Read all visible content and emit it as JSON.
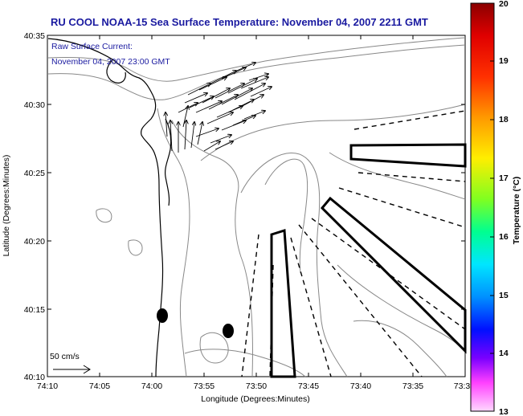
{
  "title": "RU COOL  NOAA-15  Sea Surface Temperature:  November 04, 2007 2211 GMT",
  "current_label_line1": "Raw Surface Current:",
  "current_label_line2": "November 04, 2007 23:00 GMT",
  "scale_label": "50 cm/s",
  "x_axis_label": "Longitude (Degrees:Minutes)",
  "y_axis_label": "Latitude (Degrees:Minutes)",
  "x_ticks": [
    "74:10",
    "74:05",
    "74:00",
    "73:55",
    "73:50",
    "73:45",
    "73:40",
    "73:35",
    "73:3"
  ],
  "y_ticks": [
    "40:35",
    "40:30",
    "40:25",
    "40:20",
    "40:15",
    "40:10"
  ],
  "colorbar": {
    "label": "Temperature (°C)",
    "ticks": [
      "20",
      "19",
      "18",
      "17",
      "16",
      "15",
      "14",
      "13"
    ],
    "colors": [
      "#8b0000",
      "#ff0000",
      "#ff8000",
      "#ffff00",
      "#80ff00",
      "#00ff80",
      "#00ffff",
      "#0080ff",
      "#0000ff",
      "#8000ff",
      "#ff80ff",
      "#ffe0ff"
    ]
  }
}
